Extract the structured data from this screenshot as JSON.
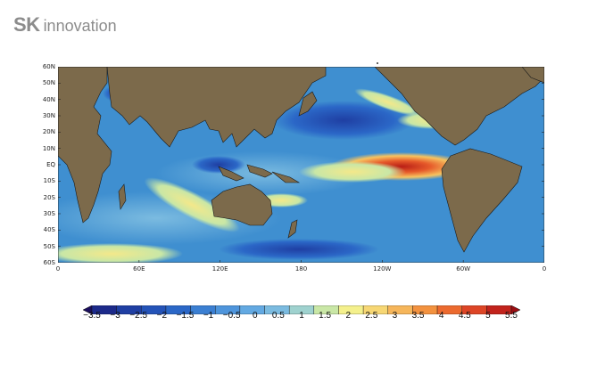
{
  "logo": {
    "mark": "SK",
    "text": "innovation"
  },
  "map": {
    "lat_labels": [
      "60N",
      "50N",
      "40N",
      "30N",
      "20N",
      "10N",
      "EQ",
      "10S",
      "20S",
      "30S",
      "40S",
      "50S",
      "60S"
    ],
    "lon_labels": [
      "0",
      "60E",
      "120E",
      "180",
      "120W",
      "60W",
      "0"
    ],
    "colors": {
      "land": "#7c6a4b",
      "ocean_base": "#3f8fd0"
    }
  },
  "colorbar": {
    "labels": [
      "-3.5",
      "-3",
      "-2.5",
      "-2",
      "-1.5",
      "-1",
      "-0.5",
      "0",
      "0.5",
      "1",
      "1.5",
      "2",
      "2.5",
      "3",
      "3.5",
      "4",
      "4.5",
      "5",
      "5.5"
    ],
    "colors": [
      "#1b0e5e",
      "#1c2a8a",
      "#1f3fa3",
      "#2453b8",
      "#2b67c7",
      "#3b7fd2",
      "#4e95dc",
      "#63a9e2",
      "#7bbbe0",
      "#9fd2cf",
      "#c9e7a6",
      "#f4f08c",
      "#f7d774",
      "#f6b65b",
      "#f3923f",
      "#ec6a2f",
      "#dd4526",
      "#c2231c",
      "#9b0e12"
    ]
  }
}
